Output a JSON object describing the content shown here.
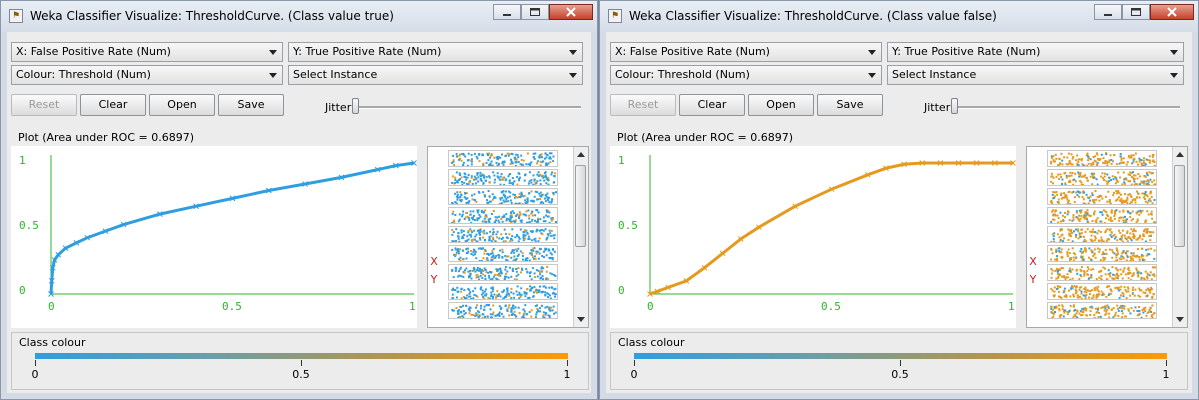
{
  "colors": {
    "class_true": "#2f9ee0",
    "class_false": "#e59a1e",
    "axis": "#2db52d",
    "xy_label": "#cc1e1e"
  },
  "windows": [
    {
      "title": "Weka Classifier Visualize: ThresholdCurve. (Class value true)",
      "x_axis_select": "X: False Positive Rate (Num)",
      "y_axis_select": "Y: True Positive Rate (Num)",
      "colour_select": "Colour: Threshold (Num)",
      "instance_select": "Select Instance",
      "buttons": {
        "reset": "Reset",
        "clear": "Clear",
        "open": "Open",
        "save": "Save"
      },
      "jitter_label": "Jitter",
      "plot_label": "Plot (Area under ROC = 0.6897)",
      "x_ticks": [
        "0",
        "0.5",
        "1"
      ],
      "y_ticks": [
        "1",
        "0.5",
        "0"
      ],
      "xy_labels": [
        "X",
        "Y"
      ],
      "legend": {
        "title": "Class colour",
        "min": "0",
        "mid": "0.5",
        "max": "1"
      }
    },
    {
      "title": "Weka Classifier Visualize: ThresholdCurve. (Class value false)",
      "x_axis_select": "X: False Positive Rate (Num)",
      "y_axis_select": "Y: True Positive Rate (Num)",
      "colour_select": "Colour: Threshold (Num)",
      "instance_select": "Select Instance",
      "buttons": {
        "reset": "Reset",
        "clear": "Clear",
        "open": "Open",
        "save": "Save"
      },
      "jitter_label": "Jitter",
      "plot_label": "Plot (Area under ROC = 0.6897)",
      "x_ticks": [
        "0",
        "0.5",
        "1"
      ],
      "y_ticks": [
        "1",
        "0.5",
        "0"
      ],
      "xy_labels": [
        "X",
        "Y"
      ],
      "legend": {
        "title": "Class colour",
        "min": "0",
        "mid": "0.5",
        "max": "1"
      }
    }
  ],
  "chart_data": [
    {
      "type": "scatter",
      "title": "Plot (Area under ROC = 0.6897)",
      "xlabel": "False Positive Rate",
      "ylabel": "True Positive Rate",
      "xlim": [
        0,
        1
      ],
      "ylim": [
        0,
        1
      ],
      "grid": false,
      "series": [
        {
          "name": "Class value true",
          "x": [
            0,
            0.002,
            0.005,
            0.01,
            0.02,
            0.04,
            0.07,
            0.1,
            0.15,
            0.2,
            0.3,
            0.4,
            0.5,
            0.6,
            0.7,
            0.8,
            0.9,
            0.95,
            1.0
          ],
          "y": [
            0,
            0.1,
            0.2,
            0.26,
            0.3,
            0.35,
            0.39,
            0.43,
            0.48,
            0.53,
            0.61,
            0.67,
            0.73,
            0.79,
            0.84,
            0.89,
            0.95,
            0.98,
            1.0
          ]
        }
      ]
    },
    {
      "type": "scatter",
      "title": "Plot (Area under ROC = 0.6897)",
      "xlabel": "False Positive Rate",
      "ylabel": "True Positive Rate",
      "xlim": [
        0,
        1
      ],
      "ylim": [
        0,
        1
      ],
      "grid": false,
      "series": [
        {
          "name": "Class value false",
          "x": [
            0,
            0.02,
            0.05,
            0.1,
            0.15,
            0.2,
            0.25,
            0.3,
            0.4,
            0.5,
            0.6,
            0.65,
            0.7,
            0.75,
            0.8,
            0.85,
            0.9,
            0.95,
            1.0
          ],
          "y": [
            0,
            0.02,
            0.05,
            0.1,
            0.2,
            0.31,
            0.42,
            0.51,
            0.67,
            0.8,
            0.91,
            0.96,
            0.99,
            1.0,
            1.0,
            1.0,
            1.0,
            1.0,
            1.0
          ]
        }
      ]
    }
  ]
}
